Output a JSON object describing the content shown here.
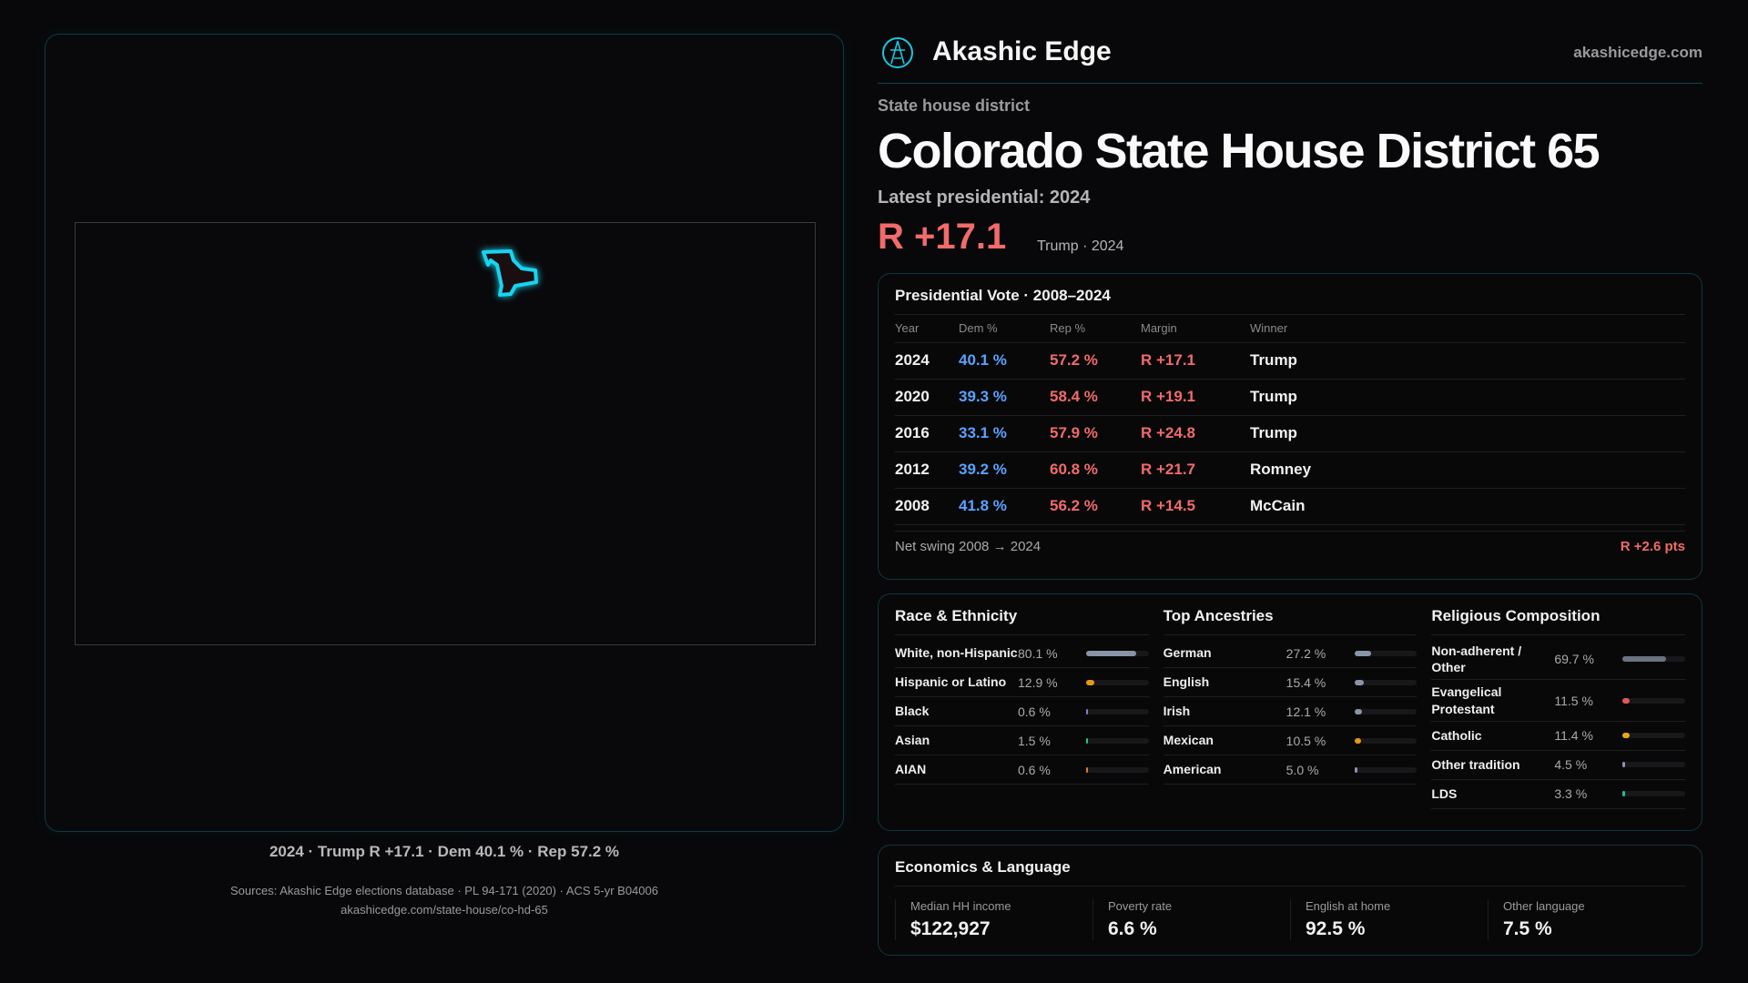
{
  "brand": {
    "name": "Akashic Edge",
    "site": "akashicedge.com",
    "logo_icon": "compass-star-icon"
  },
  "page": {
    "kicker": "State house district",
    "title": "Colorado State House District 65",
    "latest": "Latest presidential: 2024",
    "margin": "R +17.1",
    "margin_sub": "Trump · 2024"
  },
  "map": {
    "caption": "2024 · Trump R +17.1 · Dem 40.1 % · Rep 57.2 %",
    "district_color": "#19d3f0"
  },
  "presidential": {
    "title": "Presidential Vote · 2008–2024",
    "columns": [
      "Year",
      "Dem %",
      "Rep %",
      "Margin",
      "Winner"
    ],
    "rows": [
      [
        "2024",
        "40.1 %",
        "57.2 %",
        "R +17.1",
        "Trump"
      ],
      [
        "2020",
        "39.3 %",
        "58.4 %",
        "R +19.1",
        "Trump"
      ],
      [
        "2016",
        "33.1 %",
        "57.9 %",
        "R +24.8",
        "Trump"
      ],
      [
        "2012",
        "39.2 %",
        "60.8 %",
        "R +21.7",
        "Romney"
      ],
      [
        "2008",
        "41.8 %",
        "56.2 %",
        "R +14.5",
        "McCain"
      ]
    ],
    "swing_label": "Net swing 2008 → 2024",
    "swing_value": "R +2.6 pts"
  },
  "race": {
    "title": "Race & Ethnicity",
    "items": [
      {
        "label": "White, non-Hispanic",
        "pct": "80.1 %",
        "value": 80.1,
        "color": "#8a94a8"
      },
      {
        "label": "Hispanic or Latino",
        "pct": "12.9 %",
        "value": 12.9,
        "color": "#e39a12"
      },
      {
        "label": "Black",
        "pct": "0.6 %",
        "value": 0.6,
        "color": "#8a7ad8"
      },
      {
        "label": "Asian",
        "pct": "1.5 %",
        "value": 1.5,
        "color": "#1fc09a"
      },
      {
        "label": "AIAN",
        "pct": "0.6 %",
        "value": 0.6,
        "color": "#e07a20"
      }
    ]
  },
  "ancestry": {
    "title": "Top Ancestries",
    "items": [
      {
        "label": "German",
        "pct": "27.2 %",
        "value": 27.2,
        "color": "#8a94a8"
      },
      {
        "label": "English",
        "pct": "15.4 %",
        "value": 15.4,
        "color": "#8a94a8"
      },
      {
        "label": "Irish",
        "pct": "12.1 %",
        "value": 12.1,
        "color": "#8a94a8"
      },
      {
        "label": "Mexican",
        "pct": "10.5 %",
        "value": 10.5,
        "color": "#e39a12"
      },
      {
        "label": "American",
        "pct": "5.0 %",
        "value": 5.0,
        "color": "#8a94a8"
      }
    ]
  },
  "religion": {
    "title": "Religious Composition",
    "items": [
      {
        "label": "Non-adherent / Other",
        "pct": "69.7 %",
        "value": 69.7,
        "color": "#6b7280"
      },
      {
        "label": "Evangelical Protestant",
        "pct": "11.5 %",
        "value": 11.5,
        "color": "#e05a5a"
      },
      {
        "label": "Catholic",
        "pct": "11.4 %",
        "value": 11.4,
        "color": "#e3a820"
      },
      {
        "label": "Other tradition",
        "pct": "4.5 %",
        "value": 4.5,
        "color": "#8a94a8"
      },
      {
        "label": "LDS",
        "pct": "3.3 %",
        "value": 3.3,
        "color": "#1fc09a"
      }
    ]
  },
  "economics": {
    "title": "Economics & Language",
    "stats": [
      {
        "label": "Median HH income",
        "value": "$122,927"
      },
      {
        "label": "Poverty rate",
        "value": "6.6 %"
      },
      {
        "label": "English at home",
        "value": "92.5 %"
      },
      {
        "label": "Other language",
        "value": "7.5 %"
      }
    ]
  },
  "sources": {
    "line1": "Sources: Akashic Edge elections database · PL 94-171 (2020) · ACS 5-yr B04006",
    "line2": "akashicedge.com/state-house/co-hd-65"
  }
}
